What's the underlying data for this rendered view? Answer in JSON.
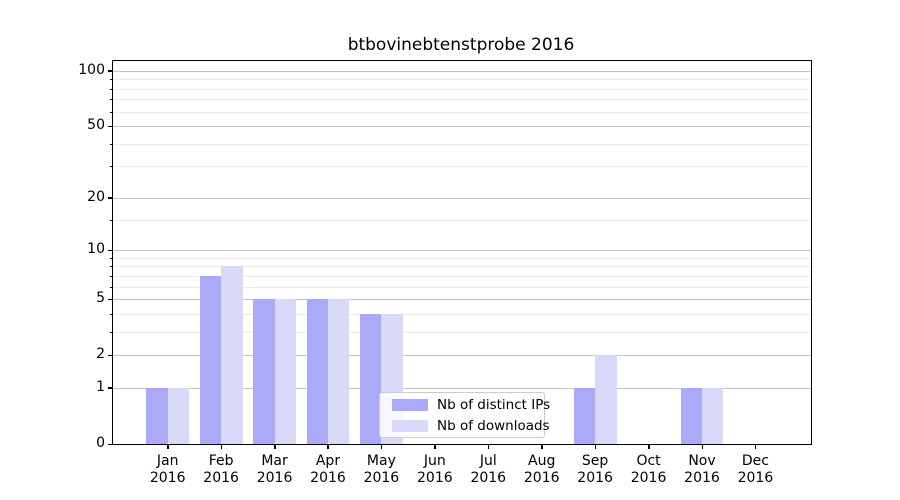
{
  "title": "btbovinebtenstprobe 2016",
  "colors": {
    "ips_bar": "#aaaaf8",
    "downloads_bar": "#d9d9f9",
    "grid_major": "#c6c6c6",
    "grid_minor": "#ebebeb",
    "axis_spine": "#000000"
  },
  "legend": {
    "items": [
      {
        "label": "Nb of distinct IPs",
        "series": "ips"
      },
      {
        "label": "Nb of downloads",
        "series": "downloads"
      }
    ]
  },
  "chart_data": {
    "type": "bar",
    "title": "btbovinebtenstprobe 2016",
    "categories": [
      "Jan 2016",
      "Feb 2016",
      "Mar 2016",
      "Apr 2016",
      "May 2016",
      "Jun 2016",
      "Jul 2016",
      "Aug 2016",
      "Sep 2016",
      "Oct 2016",
      "Nov 2016",
      "Dec 2016"
    ],
    "series": [
      {
        "name": "Nb of distinct IPs",
        "color": "#aaaaf8",
        "values": [
          1,
          7,
          5,
          5,
          4,
          0,
          0,
          0,
          1,
          0,
          1,
          0
        ]
      },
      {
        "name": "Nb of downloads",
        "color": "#d9d9f9",
        "values": [
          1,
          8,
          5,
          5,
          4,
          0,
          0,
          0,
          2,
          0,
          1,
          0
        ]
      }
    ],
    "xlabel": "",
    "ylabel": "",
    "yscale": "log1p",
    "ylim": [
      0,
      113
    ],
    "y_major_ticks": [
      0,
      1,
      2,
      5,
      10,
      20,
      50,
      100
    ],
    "y_minor_ticks": [
      3,
      4,
      6,
      7,
      8,
      9,
      15,
      30,
      40,
      60,
      70,
      80,
      90
    ],
    "grid": true,
    "legend_position": "lower center"
  }
}
